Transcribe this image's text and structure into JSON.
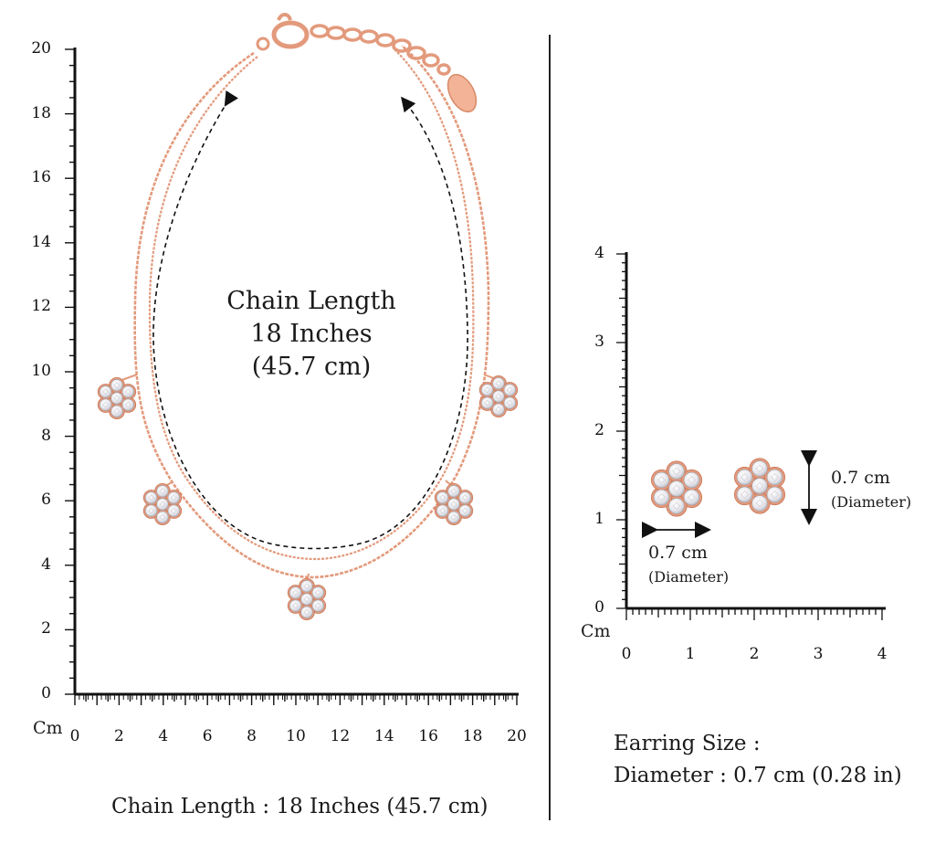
{
  "chain_label": {
    "line1": "Chain Length",
    "line2": "18 Inches",
    "line3": "(45.7 cm)"
  },
  "chain_caption": "Chain Length : 18 Inches (45.7 cm)",
  "left_ruler": {
    "unit": "Cm",
    "y_ticks": [
      "0",
      "2",
      "4",
      "6",
      "8",
      "10",
      "12",
      "14",
      "16",
      "18",
      "20"
    ],
    "x_ticks": [
      "0",
      "2",
      "4",
      "6",
      "8",
      "10",
      "12",
      "14",
      "16",
      "18",
      "20"
    ]
  },
  "right_ruler": {
    "unit": "Cm",
    "y_ticks": [
      "0",
      "1",
      "2",
      "3",
      "4"
    ],
    "x_ticks": [
      "0",
      "1",
      "2",
      "3",
      "4"
    ]
  },
  "earring": {
    "horizontal_value": "0.7 cm",
    "horizontal_note": "(Diameter)",
    "vertical_value": "0.7 cm",
    "vertical_note": "(Diameter)"
  },
  "earring_caption": {
    "line1": "Earring Size :",
    "line2": "Diameter : 0.7 cm (0.28 in)"
  },
  "colors": {
    "rose_gold": "#e39a7c",
    "rose_gold_dark": "#c97a5c",
    "stone": "#f1f1f3",
    "ink": "#111111"
  }
}
